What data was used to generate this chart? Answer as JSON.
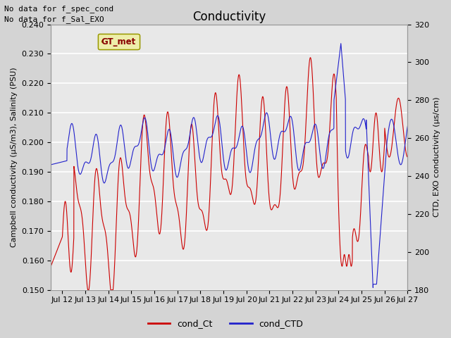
{
  "title": "Conductivity",
  "ylabel_left": "Campbell conductivity (μS/m3), Salinity (PSU)",
  "ylabel_right": "CTD, EXO conductivity (μs/cm)",
  "ylim_left": [
    0.15,
    0.24
  ],
  "ylim_right": [
    180,
    320
  ],
  "yticks_left": [
    0.15,
    0.16,
    0.17,
    0.18,
    0.19,
    0.2,
    0.21,
    0.22,
    0.23,
    0.24
  ],
  "yticks_right": [
    180,
    200,
    220,
    240,
    260,
    280,
    300,
    320
  ],
  "annotations": [
    "No data for f_spec_cond",
    "No data for f_Sal_EXO"
  ],
  "gt_met_label": "GT_met",
  "legend_labels": [
    "cond_Ct",
    "cond_CTD"
  ],
  "legend_colors": [
    "#cc0000",
    "#2222cc"
  ],
  "line_color_red": "#cc0000",
  "line_color_blue": "#2222cc",
  "title_fontsize": 12,
  "label_fontsize": 8,
  "tick_fontsize": 8,
  "annotation_fontsize": 8,
  "start_day": 11.5,
  "end_day": 27.0,
  "xtick_days": [
    12,
    13,
    14,
    15,
    16,
    17,
    18,
    19,
    20,
    21,
    22,
    23,
    24,
    25,
    26,
    27
  ]
}
